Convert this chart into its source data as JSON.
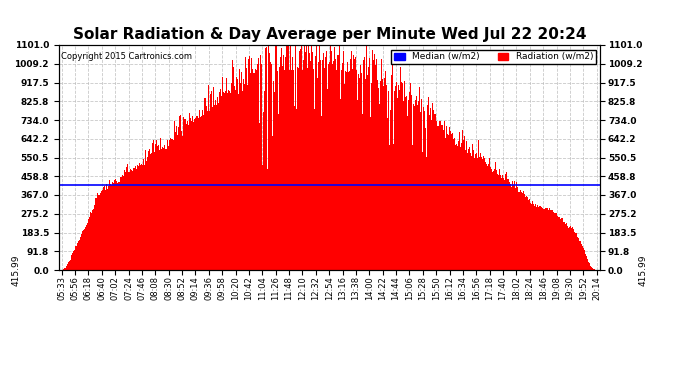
{
  "title": "Solar Radiation & Day Average per Minute Wed Jul 22 20:24",
  "copyright": "Copyright 2015 Cartronics.com",
  "median_value": 415.99,
  "y_max": 1101.0,
  "y_min": 0.0,
  "y_ticks": [
    0.0,
    91.8,
    183.5,
    275.2,
    367.0,
    458.8,
    550.5,
    642.2,
    734.0,
    825.8,
    917.5,
    1009.2,
    1101.0
  ],
  "legend_median_label": "Median (w/m2)",
  "legend_radiation_label": "Radiation (w/m2)",
  "bar_color": "#FF0000",
  "median_line_color": "#0000FF",
  "background_color": "#FFFFFF",
  "plot_bg_color": "#FFFFFF",
  "grid_color": "#BBBBBB",
  "title_fontsize": 11,
  "x_tick_labels": [
    "05:33",
    "05:56",
    "06:18",
    "06:40",
    "07:02",
    "07:24",
    "07:46",
    "08:08",
    "08:30",
    "08:52",
    "09:14",
    "09:36",
    "09:58",
    "10:20",
    "10:42",
    "11:04",
    "11:26",
    "11:48",
    "12:10",
    "12:32",
    "12:54",
    "13:16",
    "13:38",
    "14:00",
    "14:22",
    "14:44",
    "15:06",
    "15:28",
    "15:50",
    "16:12",
    "16:34",
    "16:56",
    "17:18",
    "17:40",
    "18:02",
    "18:24",
    "18:46",
    "19:08",
    "19:30",
    "19:52",
    "20:14"
  ],
  "num_points": 880
}
